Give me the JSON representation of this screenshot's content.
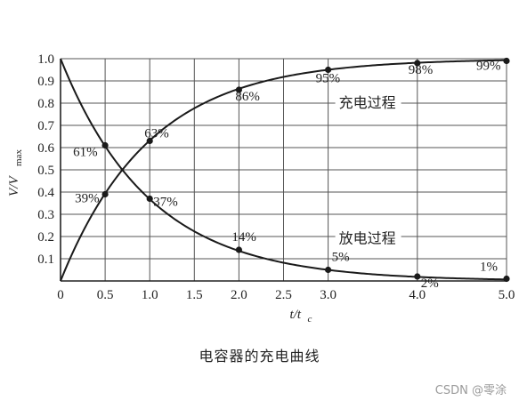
{
  "caption": "电容器的充电曲线",
  "watermark": "CSDN @零涂",
  "chart_data": {
    "type": "line",
    "xlabel": "t/t",
    "xlabel_sub": "c",
    "ylabel": "V/V",
    "ylabel_sub": "max",
    "xlim": [
      0,
      5
    ],
    "ylim": [
      0,
      1
    ],
    "grid": true,
    "x_ticks": [
      "0",
      "0.5",
      "1.0",
      "1.5",
      "2.0",
      "2.5",
      "3.0",
      "4.0",
      "5.0"
    ],
    "x_tick_values": [
      0,
      0.5,
      1.0,
      1.5,
      2.0,
      2.5,
      3.0,
      4.0,
      5.0
    ],
    "y_ticks": [
      "0.1",
      "0.2",
      "0.3",
      "0.4",
      "0.5",
      "0.6",
      "0.7",
      "0.8",
      "0.9",
      "1.0"
    ],
    "y_tick_values": [
      0.1,
      0.2,
      0.3,
      0.4,
      0.5,
      0.6,
      0.7,
      0.8,
      0.9,
      1.0
    ],
    "series": [
      {
        "name": "充电过程",
        "x": [
          0,
          0.5,
          1.0,
          2.0,
          3.0,
          4.0,
          5.0
        ],
        "y": [
          0,
          0.39,
          0.63,
          0.86,
          0.95,
          0.98,
          0.99
        ],
        "point_labels": [
          "",
          "39%",
          "63%",
          "86%",
          "95%",
          "98%",
          "99%"
        ]
      },
      {
        "name": "放电过程",
        "x": [
          0,
          0.5,
          1.0,
          2.0,
          3.0,
          4.0,
          5.0
        ],
        "y": [
          1.0,
          0.61,
          0.37,
          0.14,
          0.05,
          0.02,
          0.01
        ],
        "point_labels": [
          "",
          "61%",
          "37%",
          "14%",
          "5%",
          "2%",
          "1%"
        ]
      }
    ]
  }
}
